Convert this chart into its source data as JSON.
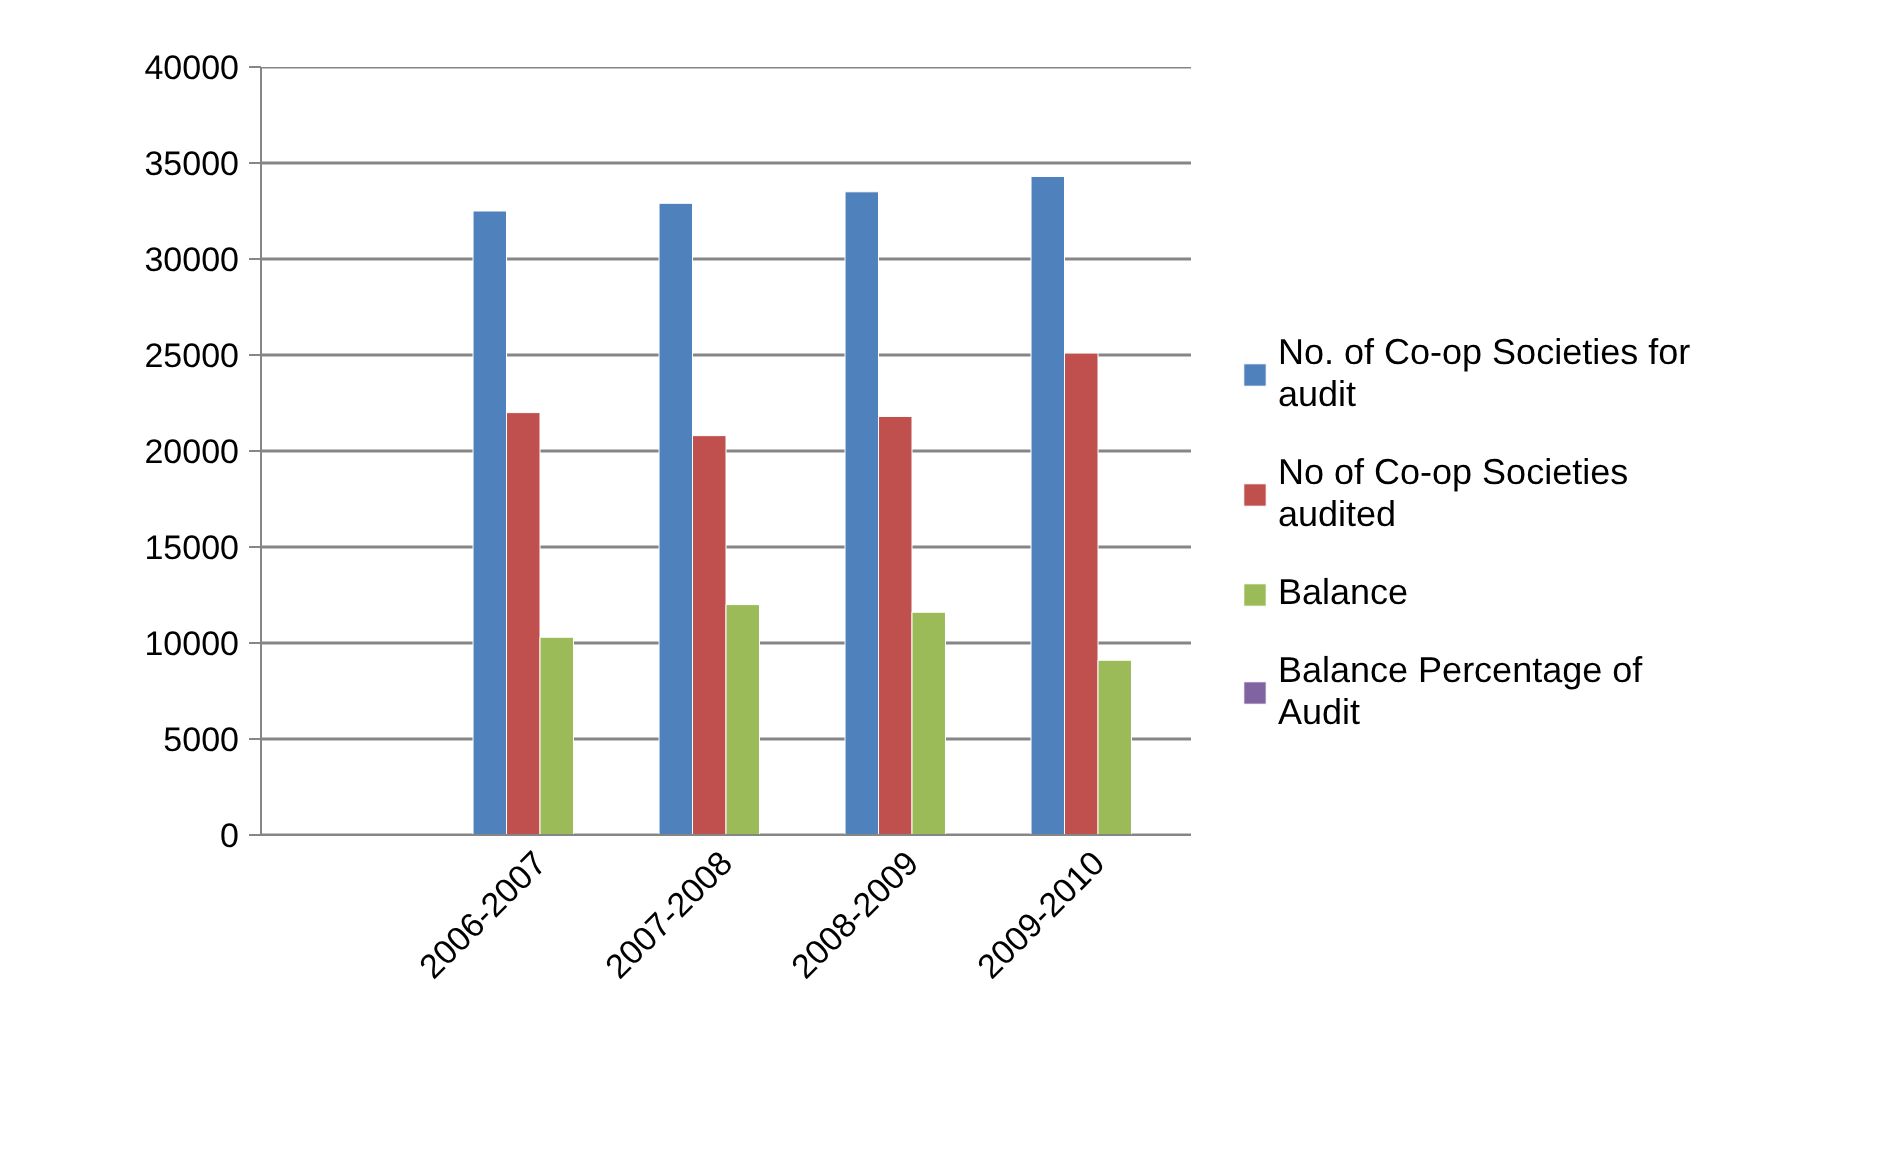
{
  "chart_data": {
    "type": "bar",
    "categories": [
      null,
      "2006-2007",
      "2007-2008",
      "2008-2009",
      "2009-2010"
    ],
    "series": [
      {
        "name": "No. of Co-op Societies for audit",
        "color": "#4f81bd",
        "values": [
          null,
          32500,
          32900,
          33500,
          34300
        ]
      },
      {
        "name": "No of Co-op Societies audited",
        "color": "#c0504d",
        "values": [
          null,
          22000,
          20800,
          21800,
          25100
        ]
      },
      {
        "name": "Balance",
        "color": "#9bbb59",
        "values": [
          null,
          10300,
          12000,
          11600,
          9100
        ]
      },
      {
        "name": "Balance Percentage of Audit",
        "color": "#8064a2",
        "values": [
          null,
          null,
          null,
          null,
          null
        ]
      }
    ],
    "ylim": [
      0,
      40000
    ],
    "yticks": [
      0,
      5000,
      10000,
      15000,
      20000,
      25000,
      30000,
      35000,
      40000
    ],
    "grid": "y",
    "legend": "right"
  }
}
